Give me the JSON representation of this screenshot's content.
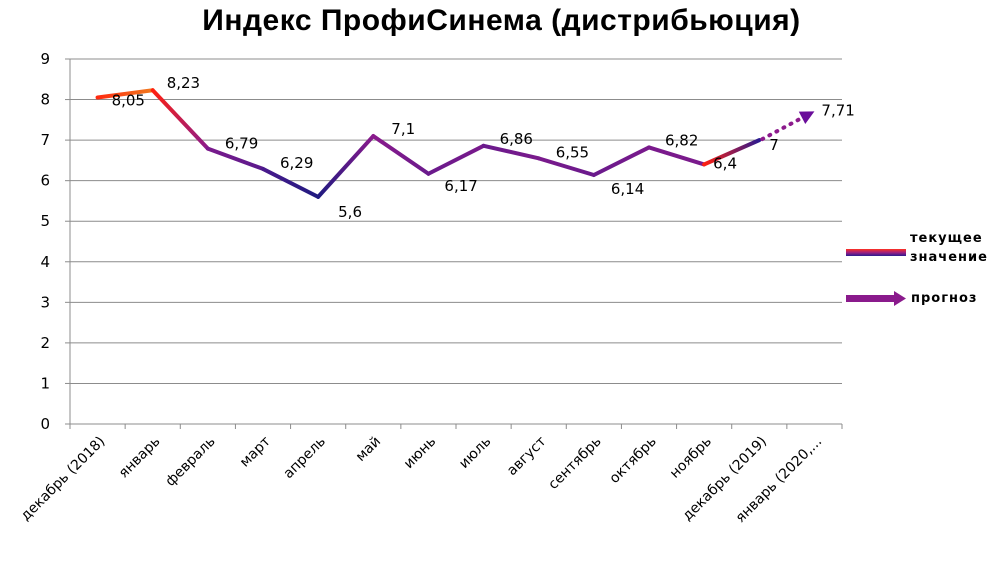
{
  "chart_data": {
    "type": "line",
    "title": "Индекс ПрофиСинема (дистрибьюция)",
    "xlabel": "",
    "ylabel": "",
    "ylim": [
      0,
      9
    ],
    "yticks": [
      0,
      1,
      2,
      3,
      4,
      5,
      6,
      7,
      8,
      9
    ],
    "grid": true,
    "legend_position": "right",
    "categories": [
      "декабрь (2018)",
      "январь",
      "февраль",
      "март",
      "апрель",
      "май",
      "июнь",
      "июль",
      "август",
      "сентябрь",
      "октябрь",
      "ноябрь",
      "декабрь (2019)",
      "январь (2020,..."
    ],
    "series": [
      {
        "name": "текущее значение",
        "values": [
          8.05,
          8.23,
          6.79,
          6.29,
          5.6,
          7.1,
          6.17,
          6.86,
          6.55,
          6.14,
          6.82,
          6.4,
          7,
          null
        ],
        "labels": [
          "8,05",
          "8,23",
          "6,79",
          "6,29",
          "5,6",
          "7,1",
          "6,17",
          "6,86",
          "6,55",
          "6,14",
          "6,82",
          "6,4",
          "7",
          ""
        ]
      },
      {
        "name": "прогноз",
        "values": [
          null,
          null,
          null,
          null,
          null,
          null,
          null,
          null,
          null,
          null,
          null,
          null,
          7,
          7.71
        ],
        "labels": [
          "",
          "",
          "",
          "",
          "",
          "",
          "",
          "",
          "",
          "",
          "",
          "",
          "",
          "7,71"
        ]
      }
    ],
    "colors": {
      "red": "#ff2a10",
      "orange": "#f0781e",
      "purple": "#7a1a8c",
      "violet": "#6a0d9a",
      "navy": "#1f1a80",
      "forecast": "#8c1a8c",
      "grid": "#8c8c8c"
    }
  },
  "legend": {
    "current_line1": "текущее",
    "current_line2": "значение",
    "forecast": "прогноз"
  }
}
